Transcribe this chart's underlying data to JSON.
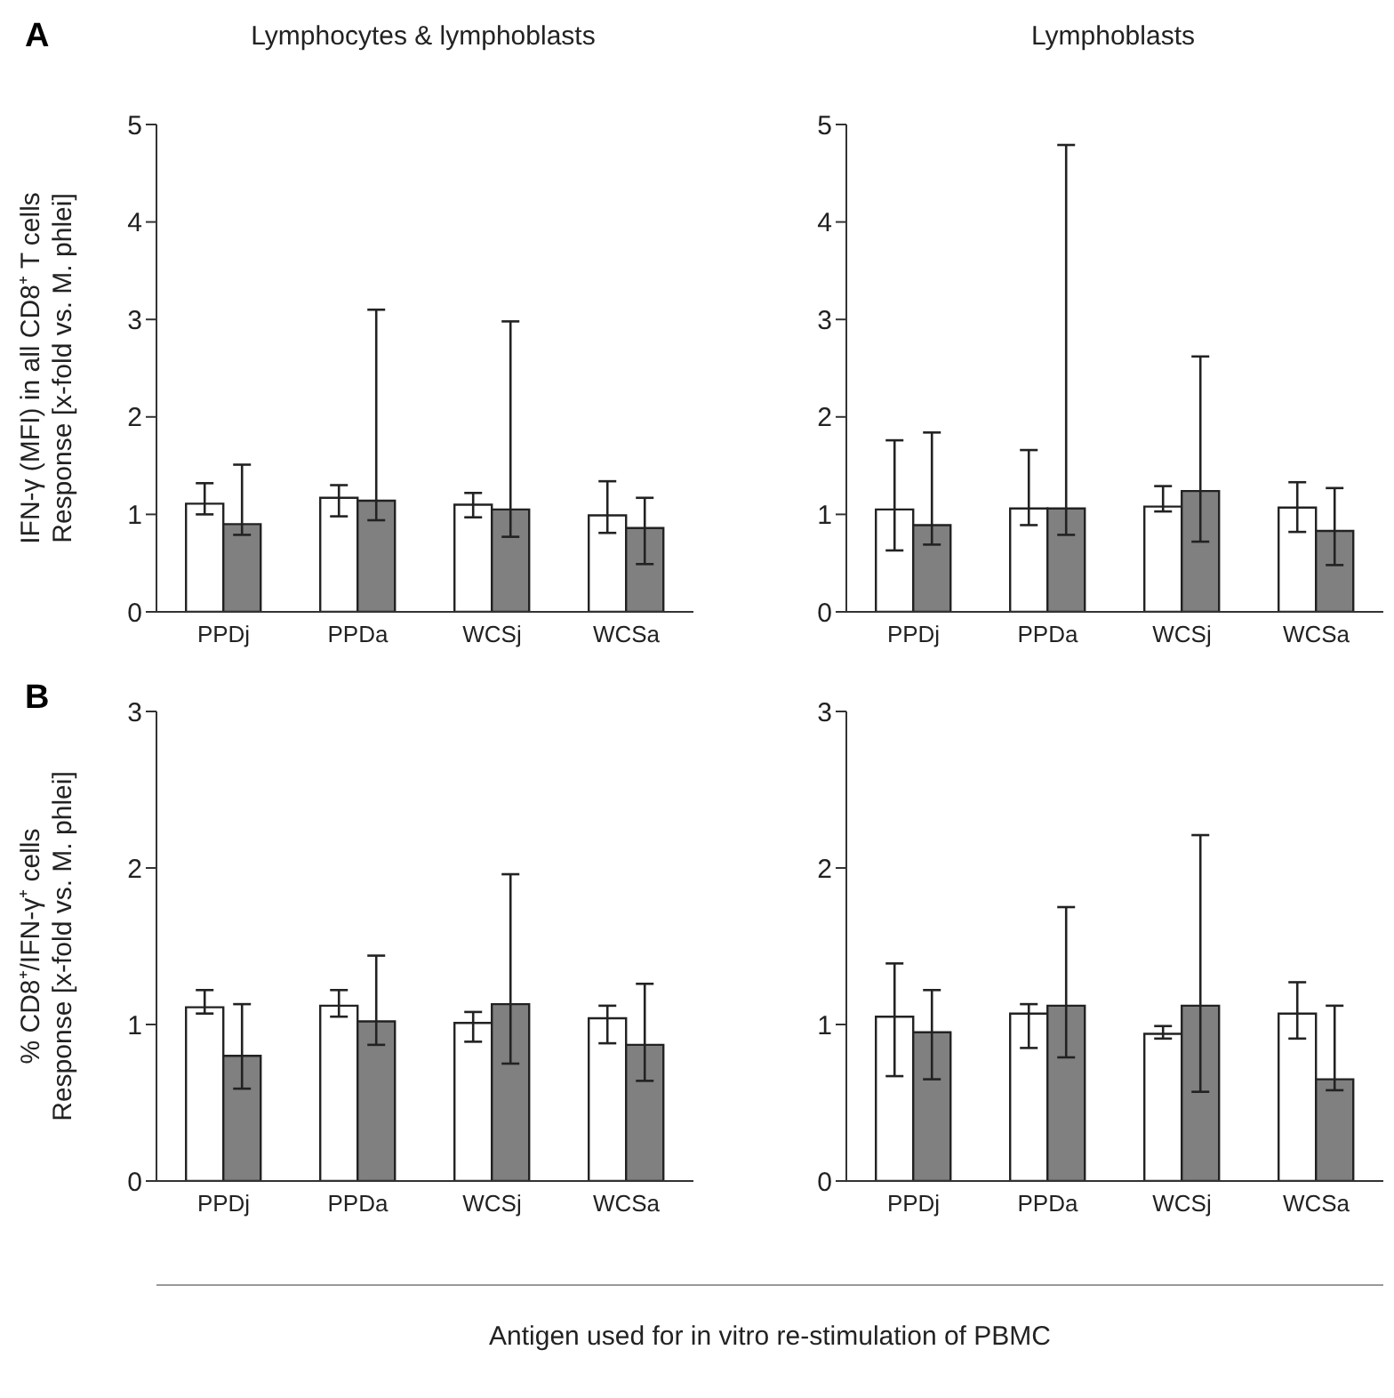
{
  "chart_data": [
    {
      "type": "bar",
      "title": "Lymphocytes & lymphoblasts",
      "ylabel": "IFN-γ (MFI) in all CD8⁺ T cells\nResponse [x-fold vs. M. phlei]",
      "annotations": [
        "A"
      ],
      "categories": [
        "PPDj",
        "PPDa",
        "WCSj",
        "WCSa"
      ],
      "ylim": [
        0,
        5
      ],
      "yticks": [
        0,
        1,
        2,
        3,
        4,
        5
      ],
      "grid": false,
      "legend": false,
      "series": [
        {
          "color": "#ffffff",
          "values": [
            1.11,
            1.17,
            1.1,
            0.99
          ],
          "errors": [
            [
              1.0,
              1.32
            ],
            [
              0.98,
              1.3
            ],
            [
              0.97,
              1.22
            ],
            [
              0.81,
              1.34
            ]
          ]
        },
        {
          "color": "#808080",
          "values": [
            0.9,
            1.14,
            1.05,
            0.86
          ],
          "errors": [
            [
              0.79,
              1.51
            ],
            [
              0.94,
              3.1
            ],
            [
              0.77,
              2.98
            ],
            [
              0.49,
              1.17
            ]
          ]
        }
      ]
    },
    {
      "type": "bar",
      "title": "Lymphoblasts",
      "categories": [
        "PPDj",
        "PPDa",
        "WCSj",
        "WCSa"
      ],
      "ylim": [
        0,
        5
      ],
      "yticks": [
        0,
        1,
        2,
        3,
        4,
        5
      ],
      "grid": false,
      "legend": false,
      "series": [
        {
          "color": "#ffffff",
          "values": [
            1.05,
            1.06,
            1.08,
            1.07
          ],
          "errors": [
            [
              0.63,
              1.76
            ],
            [
              0.89,
              1.66
            ],
            [
              1.03,
              1.29
            ],
            [
              0.82,
              1.33
            ]
          ]
        },
        {
          "color": "#808080",
          "values": [
            0.89,
            1.06,
            1.24,
            0.83
          ],
          "errors": [
            [
              0.69,
              1.84
            ],
            [
              0.79,
              4.79
            ],
            [
              0.72,
              2.62
            ],
            [
              0.48,
              1.27
            ]
          ]
        }
      ]
    },
    {
      "type": "bar",
      "ylabel": "% CD8⁺/IFN-γ⁺ cells\nResponse [x-fold vs. M. phlei]",
      "xlabel": "Antigen used for in vitro re-stimulation of PBMC",
      "annotations": [
        "B"
      ],
      "categories": [
        "PPDj",
        "PPDa",
        "WCSj",
        "WCSa"
      ],
      "ylim": [
        0,
        3
      ],
      "yticks": [
        0,
        1,
        2,
        3
      ],
      "grid": false,
      "legend": false,
      "series": [
        {
          "color": "#ffffff",
          "values": [
            1.11,
            1.12,
            1.01,
            1.04
          ],
          "errors": [
            [
              1.07,
              1.22
            ],
            [
              1.05,
              1.22
            ],
            [
              0.89,
              1.08
            ],
            [
              0.88,
              1.12
            ]
          ]
        },
        {
          "color": "#808080",
          "values": [
            0.8,
            1.02,
            1.13,
            0.87
          ],
          "errors": [
            [
              0.59,
              1.13
            ],
            [
              0.87,
              1.44
            ],
            [
              0.75,
              1.96
            ],
            [
              0.64,
              1.26
            ]
          ]
        }
      ]
    },
    {
      "type": "bar",
      "categories": [
        "PPDj",
        "PPDa",
        "WCSj",
        "WCSa"
      ],
      "ylim": [
        0,
        3
      ],
      "yticks": [
        0,
        1,
        2,
        3
      ],
      "grid": false,
      "legend": false,
      "series": [
        {
          "color": "#ffffff",
          "values": [
            1.05,
            1.07,
            0.94,
            1.07
          ],
          "errors": [
            [
              0.67,
              1.39
            ],
            [
              0.85,
              1.13
            ],
            [
              0.91,
              0.99
            ],
            [
              0.91,
              1.27
            ]
          ]
        },
        {
          "color": "#808080",
          "values": [
            0.95,
            1.12,
            1.12,
            0.65
          ],
          "errors": [
            [
              0.65,
              1.22
            ],
            [
              0.79,
              1.75
            ],
            [
              0.57,
              2.21
            ],
            [
              0.58,
              1.12
            ]
          ]
        }
      ]
    }
  ]
}
